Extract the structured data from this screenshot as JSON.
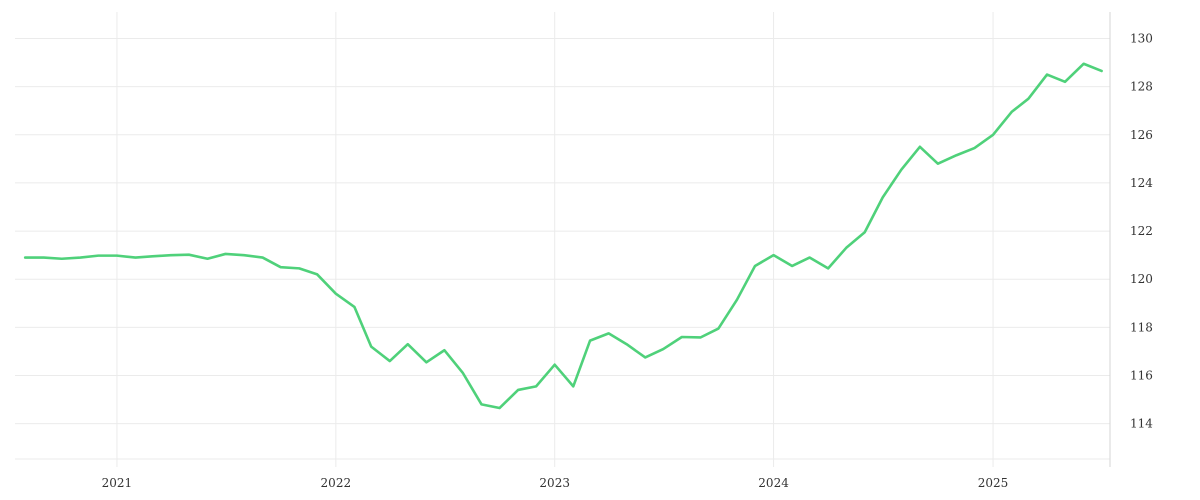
{
  "chart_data": {
    "type": "line",
    "title": "",
    "xlabel": "",
    "ylabel": "",
    "x_ticks": [
      "2021",
      "2022",
      "2023",
      "2024",
      "2025"
    ],
    "y_ticks": [
      114,
      116,
      118,
      120,
      122,
      124,
      126,
      128,
      130
    ],
    "ylim": [
      112.2,
      131.1
    ],
    "xlim": [
      "2020-07-15",
      "2025-07-15"
    ],
    "grid": true,
    "y_axis_position": "right",
    "line_color": "#4fd17a",
    "series": [
      {
        "points": [
          [
            "2020-08",
            120.9
          ],
          [
            "2020-09",
            120.9
          ],
          [
            "2020-10",
            120.85
          ],
          [
            "2020-11",
            120.9
          ],
          [
            "2020-12",
            120.98
          ],
          [
            "2021-01",
            120.98
          ],
          [
            "2021-02",
            120.9
          ],
          [
            "2021-03",
            120.95
          ],
          [
            "2021-04",
            121.0
          ],
          [
            "2021-05",
            121.02
          ],
          [
            "2021-06",
            120.85
          ],
          [
            "2021-07",
            121.05
          ],
          [
            "2021-08",
            121.0
          ],
          [
            "2021-09",
            120.9
          ],
          [
            "2021-10",
            120.5
          ],
          [
            "2021-11",
            120.45
          ],
          [
            "2021-12",
            120.2
          ],
          [
            "2022-01",
            119.4
          ],
          [
            "2022-02",
            118.85
          ],
          [
            "2022-03",
            117.2
          ],
          [
            "2022-04",
            116.6
          ],
          [
            "2022-05",
            117.3
          ],
          [
            "2022-06",
            116.55
          ],
          [
            "2022-07",
            117.05
          ],
          [
            "2022-08",
            116.1
          ],
          [
            "2022-09",
            114.8
          ],
          [
            "2022-10",
            114.65
          ],
          [
            "2022-11",
            115.4
          ],
          [
            "2022-12",
            115.55
          ],
          [
            "2023-01",
            116.45
          ],
          [
            "2023-02",
            115.55
          ],
          [
            "2023-03",
            117.45
          ],
          [
            "2023-04",
            117.75
          ],
          [
            "2023-05",
            117.3
          ],
          [
            "2023-06",
            116.75
          ],
          [
            "2023-07",
            117.1
          ],
          [
            "2023-08",
            117.6
          ],
          [
            "2023-09",
            117.58
          ],
          [
            "2023-10",
            117.95
          ],
          [
            "2023-11",
            119.15
          ],
          [
            "2023-12",
            120.55
          ],
          [
            "2024-01",
            121.0
          ],
          [
            "2024-02",
            120.55
          ],
          [
            "2024-03",
            120.9
          ],
          [
            "2024-04",
            120.45
          ],
          [
            "2024-05",
            121.3
          ],
          [
            "2024-06",
            121.95
          ],
          [
            "2024-07",
            123.4
          ],
          [
            "2024-08",
            124.55
          ],
          [
            "2024-09",
            125.5
          ],
          [
            "2024-10",
            124.8
          ],
          [
            "2024-11",
            125.15
          ],
          [
            "2024-12",
            125.45
          ],
          [
            "2025-01",
            126.0
          ],
          [
            "2025-02",
            126.95
          ],
          [
            "2025-03",
            127.5
          ],
          [
            "2025-04",
            128.5
          ],
          [
            "2025-05",
            128.2
          ],
          [
            "2025-06",
            128.95
          ],
          [
            "2025-07",
            128.65
          ]
        ]
      }
    ]
  }
}
